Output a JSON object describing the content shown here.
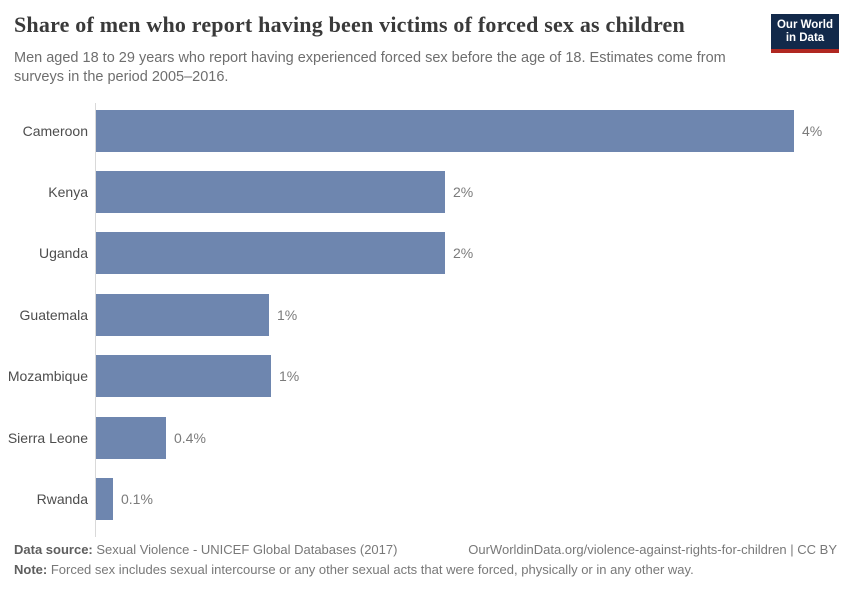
{
  "header": {
    "title": "Share of men who report having been victims of forced sex as children",
    "subtitle": "Men aged 18 to 29 years who report having experienced forced sex before the age of 18. Estimates come from surveys in the period 2005–2016.",
    "logo": {
      "line1": "Our World",
      "line2": "in Data"
    }
  },
  "chart_data": {
    "type": "bar",
    "orientation": "horizontal",
    "categories": [
      "Cameroon",
      "Kenya",
      "Uganda",
      "Guatemala",
      "Mozambique",
      "Sierra Leone",
      "Rwanda"
    ],
    "values": [
      4,
      2,
      2,
      0.99,
      1.0,
      0.4,
      0.1
    ],
    "value_labels": [
      "4%",
      "2%",
      "2%",
      "1%",
      "1%",
      "0.4%",
      "0.1%"
    ],
    "title": "Share of men who report having been victims of forced sex as children",
    "xlabel": "",
    "ylabel": "",
    "xlim": [
      0,
      4
    ],
    "unit": "%",
    "grid": false,
    "legend": "none",
    "bar_color": "#6e86af",
    "axis_line_color": "#d9d9d9"
  },
  "footer": {
    "datasource_label": "Data source:",
    "datasource_text": " Sexual Violence - UNICEF Global Databases (2017)",
    "url_text": "OurWorldinData.org/violence-against-rights-for-children | CC BY",
    "note_label": "Note:",
    "note_text": " Forced sex includes sexual intercourse or any other sexual acts that were forced, physically or in any other way."
  }
}
